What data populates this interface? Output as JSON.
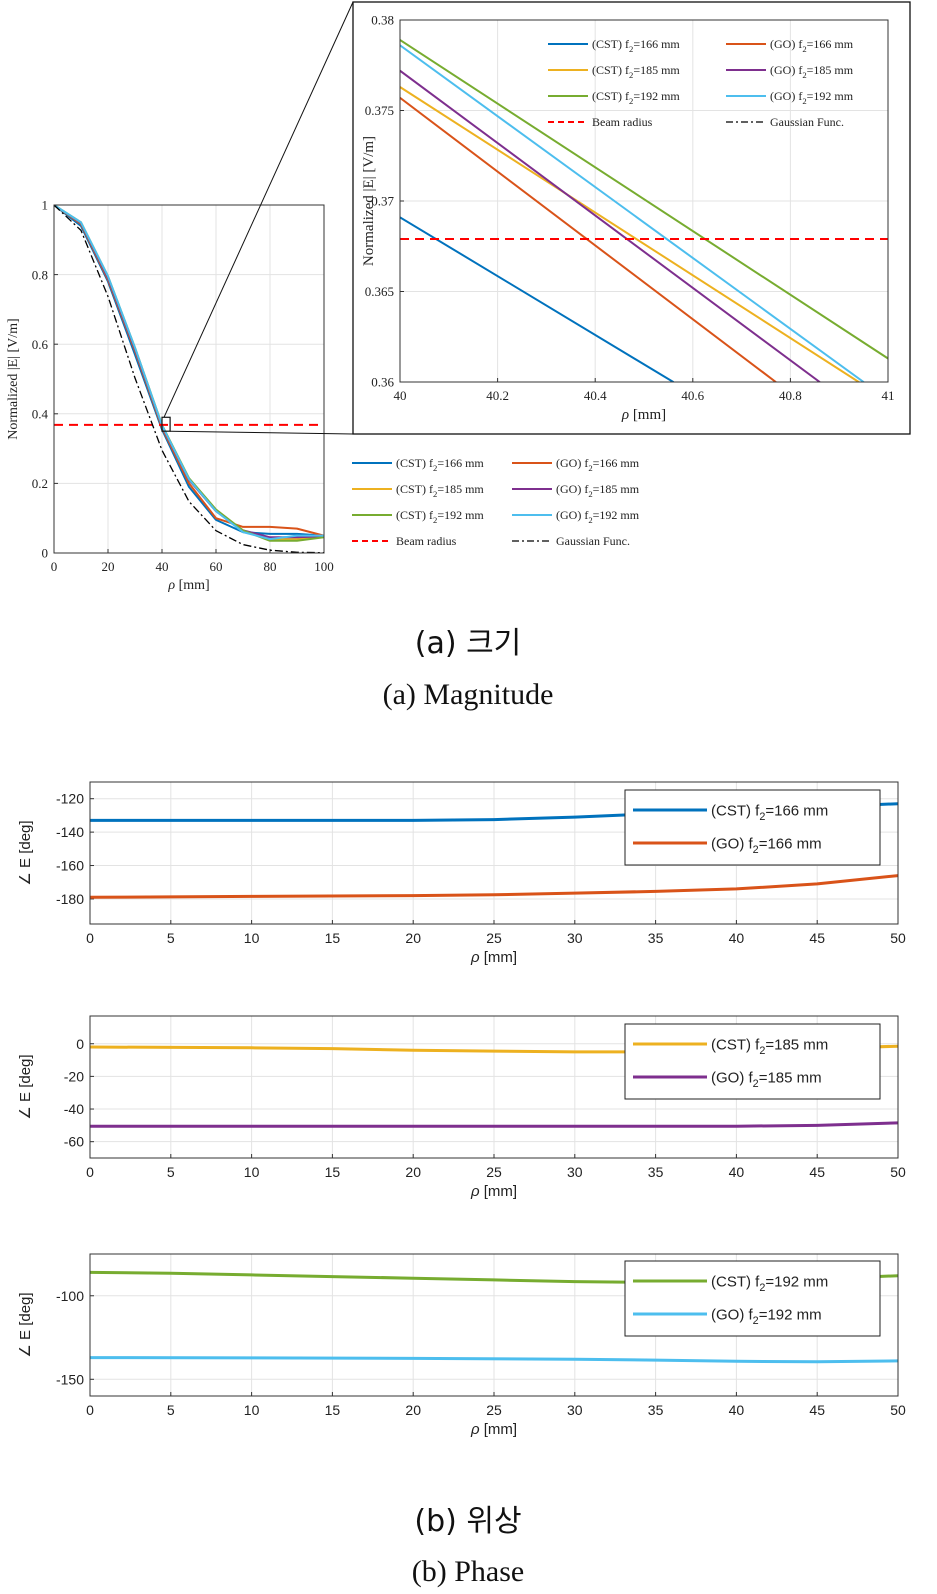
{
  "captions": {
    "a_korean": "(a)  크기",
    "a_english": "(a)  Magnitude",
    "b_korean": "(b)  위상",
    "b_english": "(b)  Phase"
  },
  "colors": {
    "cst166": "#0072BD",
    "go166": "#D95319",
    "cst185": "#EDB120",
    "go185": "#7E2F8E",
    "cst192": "#77AC30",
    "go192": "#4DBEEE",
    "beam": "#FF0000",
    "gauss": "#000000"
  },
  "chart_data": [
    {
      "id": "magnitude",
      "type": "line",
      "xlabel": "ρ [mm]",
      "ylabel": "Normalized |E| [V/m]",
      "xlim": [
        0,
        100
      ],
      "ylim": [
        0,
        1
      ],
      "xticks": [
        "0",
        "20",
        "40",
        "60",
        "80",
        "100"
      ],
      "yticks": [
        "0",
        "0.2",
        "0.4",
        "0.6",
        "0.8",
        "1"
      ],
      "grid": true,
      "legend_position": "below-right",
      "series": [
        {
          "key": "cst166",
          "name": "(CST) f₂=166 mm",
          "x": [
            0,
            10,
            20,
            30,
            40,
            50,
            60,
            70,
            80,
            90,
            100
          ],
          "y": [
            1,
            0.94,
            0.78,
            0.57,
            0.355,
            0.19,
            0.095,
            0.06,
            0.055,
            0.055,
            0.05
          ]
        },
        {
          "key": "go166",
          "name": "(GO) f₂=166 mm",
          "x": [
            0,
            10,
            20,
            30,
            40,
            50,
            60,
            70,
            80,
            90,
            100
          ],
          "y": [
            1,
            0.945,
            0.785,
            0.58,
            0.36,
            0.2,
            0.1,
            0.075,
            0.075,
            0.07,
            0.05
          ]
        },
        {
          "key": "cst185",
          "name": "(CST) f₂=185 mm",
          "x": [
            0,
            10,
            20,
            30,
            40,
            50,
            60,
            70,
            80,
            90,
            100
          ],
          "y": [
            1,
            0.948,
            0.79,
            0.585,
            0.365,
            0.21,
            0.12,
            0.065,
            0.04,
            0.04,
            0.048
          ]
        },
        {
          "key": "go185",
          "name": "(GO) f₂=185 mm",
          "x": [
            0,
            10,
            20,
            30,
            40,
            50,
            60,
            70,
            80,
            90,
            100
          ],
          "y": [
            1,
            0.948,
            0.79,
            0.585,
            0.365,
            0.21,
            0.12,
            0.065,
            0.045,
            0.045,
            0.048
          ]
        },
        {
          "key": "cst192",
          "name": "(CST) f₂=192 mm",
          "x": [
            0,
            10,
            20,
            30,
            40,
            50,
            60,
            70,
            80,
            90,
            100
          ],
          "y": [
            1,
            0.95,
            0.795,
            0.59,
            0.368,
            0.215,
            0.125,
            0.065,
            0.035,
            0.035,
            0.045
          ]
        },
        {
          "key": "go192",
          "name": "(GO) f₂=192 mm",
          "x": [
            0,
            10,
            20,
            30,
            40,
            50,
            60,
            70,
            80,
            90,
            100
          ],
          "y": [
            1,
            0.95,
            0.795,
            0.59,
            0.367,
            0.212,
            0.12,
            0.06,
            0.04,
            0.05,
            0.05
          ]
        },
        {
          "key": "beam",
          "name": "Beam radius",
          "style": "dashed",
          "x": [
            0,
            100
          ],
          "y": [
            0.368,
            0.368
          ]
        },
        {
          "key": "gauss",
          "name": "Gaussian Func.",
          "style": "dashdot",
          "x": [
            0,
            10,
            20,
            30,
            40,
            50,
            60,
            70,
            80,
            90,
            100
          ],
          "y": [
            1,
            0.927,
            0.737,
            0.503,
            0.295,
            0.148,
            0.064,
            0.024,
            0.008,
            0.002,
            0.001
          ]
        }
      ]
    },
    {
      "id": "magnitude-zoom",
      "type": "line",
      "xlabel": "ρ [mm]",
      "ylabel": "Normalized |E| [V/m]",
      "xlim": [
        40,
        41
      ],
      "ylim": [
        0.36,
        0.38
      ],
      "xticks": [
        "40",
        "40.2",
        "40.4",
        "40.6",
        "40.8",
        "41"
      ],
      "yticks": [
        "0.36",
        "0.365",
        "0.37",
        "0.375",
        "0.38"
      ],
      "grid": true,
      "legend_position": "top",
      "series": [
        {
          "key": "cst166",
          "name": "(CST) f₂=166 mm",
          "x": [
            40,
            40.56
          ],
          "y": [
            0.3691,
            0.36
          ]
        },
        {
          "key": "go166",
          "name": "(GO) f₂=166 mm",
          "x": [
            40,
            40.77
          ],
          "y": [
            0.3757,
            0.36
          ]
        },
        {
          "key": "cst185",
          "name": "(CST) f₂=185 mm",
          "x": [
            40,
            40.94
          ],
          "y": [
            0.3763,
            0.36
          ]
        },
        {
          "key": "go185",
          "name": "(GO) f₂=185 mm",
          "x": [
            40,
            40.86
          ],
          "y": [
            0.3772,
            0.36
          ]
        },
        {
          "key": "cst192",
          "name": "(CST) f₂=192 mm",
          "x": [
            40,
            41
          ],
          "y": [
            0.3789,
            0.3613
          ]
        },
        {
          "key": "go192",
          "name": "(GO) f₂=192 mm",
          "x": [
            40,
            40.95
          ],
          "y": [
            0.3786,
            0.36
          ]
        },
        {
          "key": "beam",
          "name": "Beam radius",
          "style": "dashed",
          "x": [
            40,
            41
          ],
          "y": [
            0.3679,
            0.3679
          ]
        },
        {
          "key": "gauss",
          "name": "Gaussian Func.",
          "style": "dashdot",
          "x": [],
          "y": []
        }
      ]
    },
    {
      "id": "phase-166",
      "type": "line",
      "xlabel": "ρ [mm]",
      "ylabel": "∠ E [deg]",
      "xlim": [
        0,
        50
      ],
      "ylim": [
        -195,
        -110
      ],
      "xticks": [
        "0",
        "5",
        "10",
        "15",
        "20",
        "25",
        "30",
        "35",
        "40",
        "45",
        "50"
      ],
      "yticks": [
        "-120",
        "-140",
        "-160",
        "-180"
      ],
      "ytick_values": [
        -120,
        -140,
        -160,
        -180
      ],
      "grid": true,
      "legend_position": "top-right",
      "series": [
        {
          "key": "cst166",
          "name": "(CST) f₂=166 mm",
          "x": [
            0,
            10,
            20,
            25,
            30,
            35,
            40,
            45,
            50
          ],
          "y": [
            -133,
            -133,
            -133,
            -132.5,
            -131,
            -129,
            -127,
            -125,
            -123
          ]
        },
        {
          "key": "go166",
          "name": "(GO) f₂=166 mm",
          "x": [
            0,
            10,
            20,
            25,
            30,
            35,
            40,
            45,
            50
          ],
          "y": [
            -179,
            -178.5,
            -178,
            -177.5,
            -176.5,
            -175.5,
            -174,
            -171,
            -166
          ]
        }
      ]
    },
    {
      "id": "phase-185",
      "type": "line",
      "xlabel": "ρ [mm]",
      "ylabel": "∠ E [deg]",
      "xlim": [
        0,
        50
      ],
      "ylim": [
        -70,
        17
      ],
      "xticks": [
        "0",
        "5",
        "10",
        "15",
        "20",
        "25",
        "30",
        "35",
        "40",
        "45",
        "50"
      ],
      "yticks": [
        "0",
        "-20",
        "-40",
        "-60"
      ],
      "ytick_values": [
        0,
        -20,
        -40,
        -60
      ],
      "grid": true,
      "legend_position": "top-right",
      "series": [
        {
          "key": "cst185",
          "name": "(CST) f₂=185 mm",
          "x": [
            0,
            10,
            15,
            20,
            25,
            30,
            35,
            40,
            45,
            50
          ],
          "y": [
            -2,
            -2.5,
            -3,
            -4,
            -4.5,
            -5,
            -5,
            -4,
            -3,
            -1.5
          ]
        },
        {
          "key": "go185",
          "name": "(GO) f₂=185 mm",
          "x": [
            0,
            10,
            20,
            30,
            40,
            45,
            50
          ],
          "y": [
            -50.5,
            -50.5,
            -50.5,
            -50.5,
            -50.5,
            -50,
            -48.5
          ]
        }
      ]
    },
    {
      "id": "phase-192",
      "type": "line",
      "xlabel": "ρ [mm]",
      "ylabel": "∠ E [deg]",
      "xlim": [
        0,
        50
      ],
      "ylim": [
        -160,
        -75
      ],
      "xticks": [
        "0",
        "5",
        "10",
        "15",
        "20",
        "25",
        "30",
        "35",
        "40",
        "45",
        "50"
      ],
      "yticks": [
        "-100",
        "-150"
      ],
      "ytick_values": [
        -100,
        -150
      ],
      "grid": true,
      "legend_position": "top-right",
      "series": [
        {
          "key": "cst192",
          "name": "(CST) f₂=192 mm",
          "x": [
            0,
            5,
            10,
            15,
            20,
            25,
            30,
            35,
            40,
            45,
            50
          ],
          "y": [
            -86,
            -86.5,
            -87.5,
            -88.5,
            -89.5,
            -90.5,
            -91.5,
            -92,
            -91.5,
            -90,
            -88
          ]
        },
        {
          "key": "go192",
          "name": "(GO) f₂=192 mm",
          "x": [
            0,
            10,
            20,
            30,
            35,
            40,
            45,
            50
          ],
          "y": [
            -137,
            -137.2,
            -137.5,
            -138,
            -138.5,
            -139.2,
            -139.5,
            -139
          ]
        }
      ]
    }
  ]
}
